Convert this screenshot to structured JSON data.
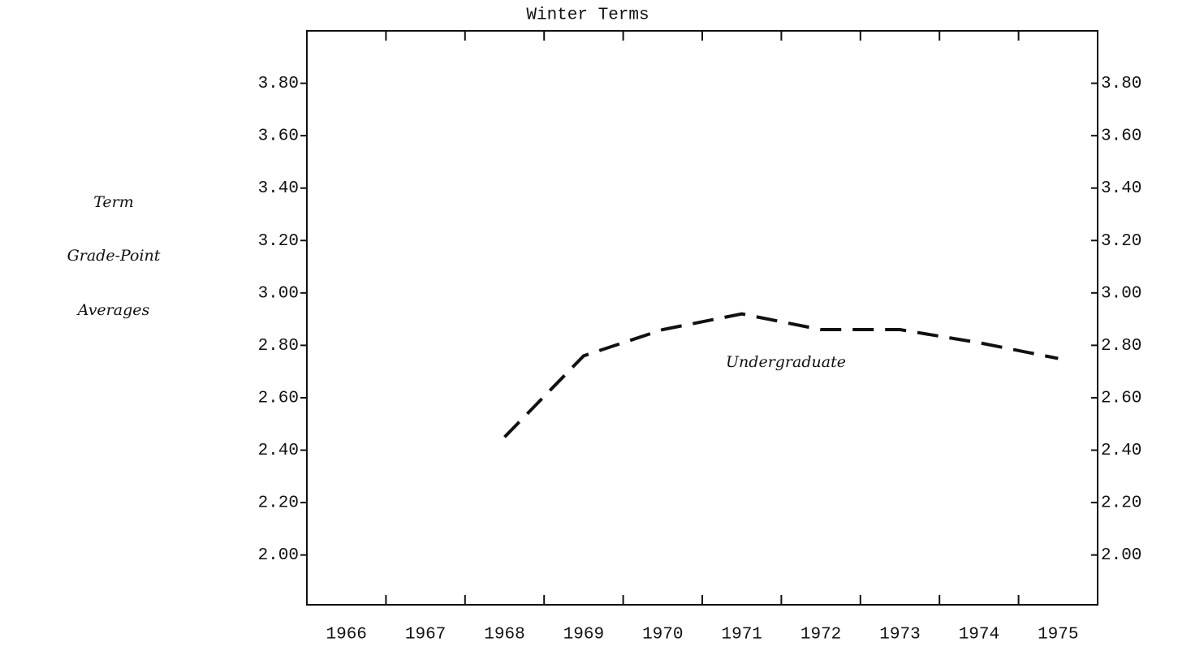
{
  "chart_data": {
    "type": "line",
    "title": "Winter Terms",
    "y_label": [
      "Term",
      "Grade-Point",
      "Averages"
    ],
    "annotation": "Undergraduate",
    "categories": [
      "1966",
      "1967",
      "1968",
      "1969",
      "1970",
      "1971",
      "1972",
      "1973",
      "1974",
      "1975"
    ],
    "series": [
      {
        "name": "Undergraduate",
        "color": "#111111",
        "values": [
          null,
          null,
          2.45,
          2.76,
          2.86,
          2.92,
          2.86,
          2.86,
          2.81,
          2.75
        ]
      }
    ],
    "ylim": [
      1.81,
      4.0
    ],
    "yticks": [
      {
        "value": 2.0,
        "label": "2.00"
      },
      {
        "value": 2.2,
        "label": "2.20"
      },
      {
        "value": 2.4,
        "label": "2.40"
      },
      {
        "value": 2.6,
        "label": "2.60"
      },
      {
        "value": 2.8,
        "label": "2.80"
      },
      {
        "value": 3.0,
        "label": "3.00"
      },
      {
        "value": 3.2,
        "label": "3.20"
      },
      {
        "value": 3.4,
        "label": "3.40"
      },
      {
        "value": 3.6,
        "label": "3.60"
      },
      {
        "value": 3.8,
        "label": "3.80"
      }
    ],
    "dashed": true
  }
}
